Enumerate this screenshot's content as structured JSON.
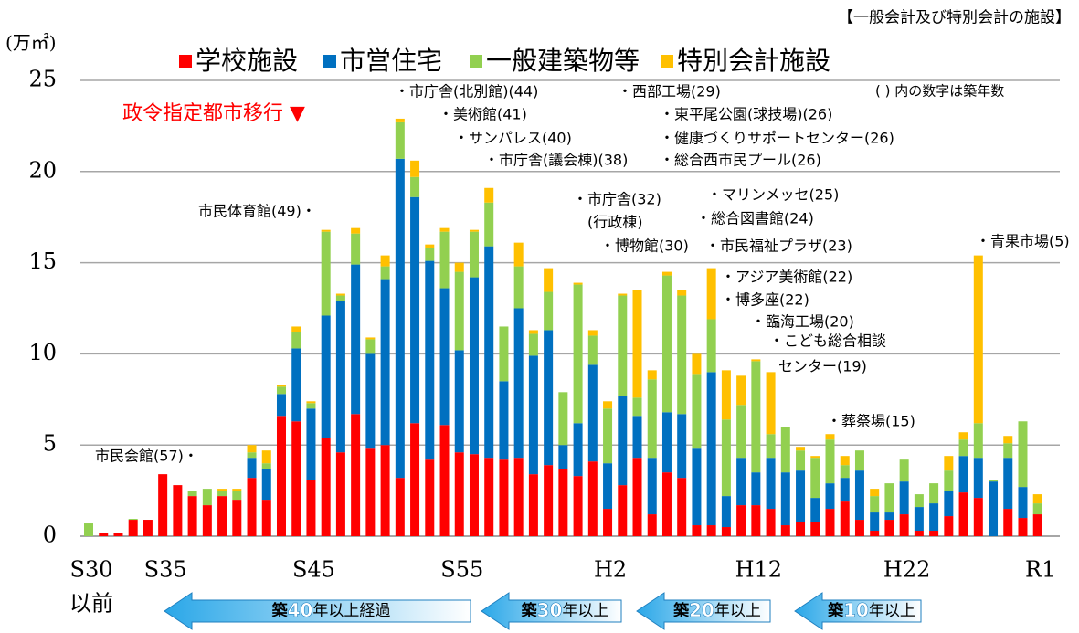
{
  "chart_data": {
    "type": "stacked_bar",
    "note": "【一般会計及び特別会計の施設】",
    "y_unit": "(万㎡)",
    "legend_note": "( ) 内の数字は築年数",
    "event": "政令指定都市移行 ▼",
    "categories": [
      "S30",
      null,
      null,
      null,
      null,
      "S35",
      null,
      null,
      null,
      null,
      null,
      null,
      null,
      null,
      null,
      "S45",
      null,
      null,
      null,
      null,
      null,
      null,
      null,
      null,
      null,
      "S55",
      null,
      null,
      null,
      null,
      null,
      null,
      null,
      null,
      null,
      "H2",
      null,
      null,
      null,
      null,
      null,
      null,
      null,
      null,
      null,
      "H12",
      null,
      null,
      null,
      null,
      null,
      null,
      null,
      null,
      null,
      "H22",
      null,
      null,
      null,
      null,
      null,
      null,
      null,
      null,
      "R1"
    ],
    "first_category_suffix": "以前",
    "series": [
      {
        "name": "学校施設",
        "color": "#ff0000",
        "values": [
          0,
          0.2,
          0.2,
          0.9,
          0.9,
          3.4,
          2.8,
          2.2,
          1.7,
          2.2,
          2.0,
          3.2,
          2.0,
          6.6,
          6.3,
          3.1,
          5.4,
          4.6,
          6.7,
          4.8,
          5.0,
          3.2,
          6.2,
          4.2,
          6.1,
          4.6,
          4.5,
          4.3,
          4.2,
          4.3,
          3.4,
          3.9,
          3.7,
          3.3,
          4.1,
          1.5,
          2.8,
          4.3,
          1.2,
          3.5,
          3.2,
          0.6,
          0.6,
          0.5,
          1.7,
          1.7,
          1.5,
          0.6,
          0.8,
          0.8,
          1.5,
          1.9,
          0.9,
          0.3,
          0.9,
          1.2,
          0.3,
          0.3,
          1.1,
          2.4,
          2.1,
          0,
          1.5,
          1.0,
          1.2
        ]
      },
      {
        "name": "市営住宅",
        "color": "#0070c0",
        "values": [
          0,
          0,
          0,
          0,
          0,
          0,
          0,
          0,
          0,
          0,
          0,
          1.1,
          1.7,
          1.2,
          4.0,
          3.9,
          6.7,
          8.3,
          8.2,
          5.2,
          9.1,
          17.5,
          12.4,
          10.9,
          7.5,
          5.6,
          9.7,
          11.6,
          4.3,
          8.2,
          6.5,
          7.4,
          1.3,
          2.9,
          5.3,
          2.5,
          4.9,
          2.3,
          3.1,
          3.3,
          3.5,
          4.2,
          8.4,
          1.7,
          2.6,
          1.8,
          2.8,
          2.9,
          2.8,
          1.3,
          1.4,
          1.3,
          2.7,
          1.0,
          0.4,
          1.8,
          1.3,
          1.5,
          1.4,
          2.0,
          2.2,
          3.0,
          2.8,
          1.7,
          0
        ]
      },
      {
        "name": "一般建築物等",
        "color": "#92d050",
        "values": [
          0.7,
          0,
          0,
          0.05,
          0,
          0,
          0,
          0.3,
          0.9,
          0.3,
          0.5,
          0.3,
          0.3,
          0.4,
          0.9,
          0.3,
          4.6,
          0.3,
          1.7,
          0.8,
          0.7,
          2.0,
          1.1,
          0.7,
          3.1,
          4.3,
          2.5,
          2.4,
          3.0,
          2.3,
          1.2,
          2.1,
          2.9,
          7.6,
          1.6,
          3.0,
          5.5,
          1.0,
          4.3,
          7.5,
          6.5,
          4.1,
          2.9,
          4.2,
          2.9,
          6.1,
          1.3,
          2.5,
          1.1,
          2.2,
          2.4,
          0.7,
          1.1,
          0.9,
          1.6,
          1.2,
          0.7,
          1.1,
          1.1,
          0.9,
          1.9,
          0.1,
          0.8,
          3.6,
          0.6
        ]
      },
      {
        "name": "特別会計施設",
        "color": "#ffc000",
        "values": [
          0,
          0,
          0,
          0,
          0,
          0,
          0,
          0,
          0,
          0.1,
          0.1,
          0.4,
          0.7,
          0.1,
          0.3,
          0.1,
          0.1,
          0.1,
          0.3,
          0.1,
          0.6,
          0.2,
          0.9,
          0.2,
          0.2,
          0.5,
          0.1,
          0.8,
          0,
          1.3,
          0.2,
          1.3,
          0,
          0.1,
          0.3,
          0.4,
          0.1,
          5.9,
          0.5,
          0.2,
          0.3,
          1.1,
          2.8,
          2.7,
          1.6,
          0.1,
          3.4,
          0,
          0.2,
          0.1,
          0.3,
          0.5,
          0,
          0.4,
          0,
          0,
          0,
          0,
          0.8,
          0.4,
          9.2,
          0,
          0.4,
          0,
          0.5
        ]
      }
    ],
    "ylim": [
      0,
      25
    ],
    "yticks": [
      0,
      5,
      10,
      15,
      20,
      25
    ],
    "grid": true,
    "annotations": [
      "・市庁舎(北別館)(44)",
      "・美術館(41)",
      "・サンパレス(40)",
      "・市庁舎(議会棟)(38)",
      "市民体育館(49)・",
      "市民会館(57)・",
      "・西部工場(29)",
      "・東平尾公園(球技場)(26)",
      "・健康づくりサポートセンター(26)",
      "・総合西市民プール(26)",
      "・市庁舎(32)",
      "(行政棟)",
      "・博物館(30)",
      "・マリンメッセ(25)",
      "・総合図書館(24)",
      "・市民福祉プラザ(23)",
      "・アジア美術館(22)",
      "・博多座(22)",
      "・臨海工場(20)",
      "・こども総合相談",
      "センター(19)",
      "・葬祭場(15)",
      "・青果市場(5)"
    ],
    "age_bands": [
      "築40年以上経過",
      "築30年以上",
      "築20年以上",
      "築10年以上"
    ]
  }
}
